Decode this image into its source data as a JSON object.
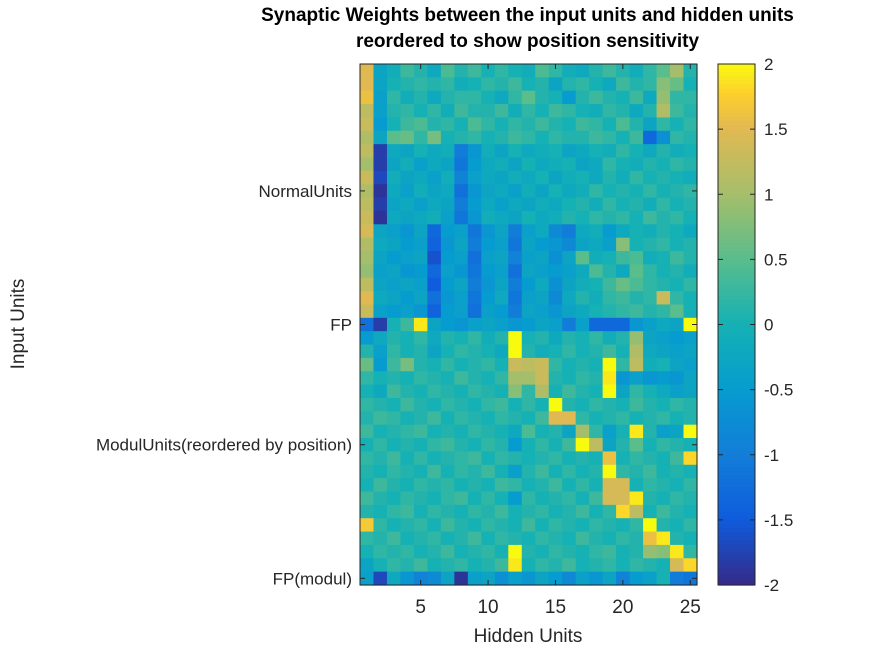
{
  "chart_data": {
    "type": "heatmap",
    "title": [
      "Synaptic Weights between the input units and hidden units",
      "reordered to show position sensitivity"
    ],
    "xlabel": "Hidden Units",
    "ylabel": "Input Units",
    "x_ticks": [
      5,
      10,
      15,
      20,
      25
    ],
    "y_ticks": [
      {
        "row": 9,
        "label": "NormalUnits"
      },
      {
        "row": 19,
        "label": "FP"
      },
      {
        "row": 28,
        "label": "ModulUnits(reordered by position)"
      },
      {
        "row": 38,
        "label": "FP(modul)"
      }
    ],
    "n_columns": 25,
    "n_rows": 39,
    "clim": [
      -2,
      2
    ],
    "colorbar_ticks": [
      "2",
      "1.5",
      "1",
      "0.5",
      "0",
      "-0.5",
      "-1",
      "-1.5",
      "-2"
    ],
    "colormap": "parula",
    "values": [
      [
        1.5,
        -0.3,
        -0.1,
        0.3,
        0.1,
        -0.2,
        0.4,
        0.1,
        0.3,
        0,
        0.2,
        0,
        -0.1,
        0.4,
        0.2,
        -0.1,
        -0.2,
        0.1,
        0.3,
        0.1,
        -0.1,
        0.2,
        0.5,
        1.0,
        0.1
      ],
      [
        1.5,
        -0.3,
        0.0,
        0.1,
        0.2,
        0.1,
        0.2,
        -0.1,
        0.0,
        0.2,
        0.1,
        0.3,
        0.0,
        0.1,
        -0.3,
        0.1,
        0.2,
        0.0,
        -0.2,
        0.3,
        0.1,
        0.2,
        0.8,
        0.6,
        0.0
      ],
      [
        1.6,
        -0.4,
        0.2,
        -0.1,
        0.1,
        -0.2,
        0.1,
        0.2,
        0.2,
        0.0,
        -0.2,
        0.2,
        0.5,
        0.1,
        0.0,
        -0.5,
        0.1,
        0.3,
        0.1,
        0.0,
        0.3,
        -0.2,
        0.9,
        0.2,
        0.2
      ],
      [
        1.2,
        -0.4,
        0.1,
        0.2,
        0.0,
        0.2,
        -0.1,
        0.3,
        0.1,
        0.1,
        0.3,
        -0.1,
        0.2,
        0.0,
        0.3,
        0.2,
        0.0,
        -0.1,
        0.2,
        0.1,
        -0.2,
        0.1,
        1.1,
        0.3,
        0.1
      ],
      [
        1.3,
        -0.5,
        0.0,
        0.3,
        0.4,
        0.1,
        0.2,
        0.0,
        0.4,
        0.2,
        0.0,
        0.2,
        0.1,
        0.3,
        0.1,
        0.0,
        0.3,
        0.2,
        0.0,
        0.4,
        0.1,
        -0.3,
        0.2,
        0.0,
        0.2
      ],
      [
        1.1,
        -0.3,
        0.5,
        0.6,
        0.2,
        0.7,
        0.0,
        0.1,
        0.2,
        0.0,
        0.1,
        0.3,
        0.2,
        0.0,
        0.2,
        0.1,
        0.1,
        0.3,
        0.2,
        0.0,
        0.3,
        -1.3,
        -0.7,
        0.2,
        0.1
      ],
      [
        1.2,
        -1.8,
        -0.2,
        -0.3,
        0.0,
        -0.2,
        -0.1,
        -1.0,
        -0.6,
        -0.1,
        -0.3,
        0.0,
        -0.2,
        -0.1,
        0.0,
        -0.3,
        -0.2,
        0.0,
        -0.1,
        0.2,
        0.0,
        -0.2,
        0.1,
        -0.1,
        0.0
      ],
      [
        1.0,
        -1.8,
        -0.3,
        -0.1,
        -0.4,
        -0.2,
        -0.3,
        -1.1,
        -0.5,
        -0.2,
        -0.1,
        -0.3,
        0.0,
        -0.2,
        -0.1,
        0.0,
        -0.3,
        -0.2,
        0.2,
        0.0,
        -0.1,
        0.1,
        0.0,
        0.2,
        0.1
      ],
      [
        1.3,
        -1.7,
        -0.1,
        -0.3,
        -0.2,
        -0.4,
        -0.1,
        -0.9,
        -0.4,
        -0.2,
        -0.3,
        -0.1,
        -0.2,
        0.0,
        -0.3,
        -0.1,
        0.0,
        -0.2,
        0.1,
        -0.1,
        0.2,
        0.0,
        0.1,
        0.0,
        -0.1
      ],
      [
        1.1,
        -1.9,
        -0.2,
        -0.4,
        -0.1,
        -0.3,
        -0.2,
        -1.2,
        -0.6,
        -0.3,
        -0.2,
        -0.4,
        -0.1,
        -0.3,
        0.0,
        -0.2,
        -0.1,
        0.2,
        0.0,
        0.1,
        0.0,
        0.2,
        0.0,
        0.1,
        0.2
      ],
      [
        1.2,
        -1.8,
        -0.3,
        -0.2,
        -0.4,
        -0.2,
        -0.3,
        -1.0,
        -0.5,
        -0.2,
        -0.4,
        -0.2,
        -0.3,
        -0.1,
        -0.2,
        0.0,
        0.1,
        -0.1,
        0.2,
        0.0,
        0.1,
        -0.1,
        0.2,
        0.0,
        0.1
      ],
      [
        1.3,
        -1.9,
        -0.2,
        -0.3,
        -0.2,
        -0.1,
        -0.4,
        -1.1,
        -0.6,
        -0.1,
        -0.2,
        -0.3,
        0.0,
        -0.2,
        -0.1,
        0.1,
        0.0,
        0.2,
        0.1,
        0.2,
        0.0,
        0.3,
        0.1,
        0.2,
        0.0
      ],
      [
        1.4,
        -0.3,
        -0.4,
        -0.6,
        -0.3,
        -1.3,
        -0.5,
        -0.4,
        -1.1,
        -0.6,
        -0.3,
        -1.0,
        -0.4,
        -0.2,
        -0.8,
        -1.0,
        -0.2,
        -0.1,
        -0.5,
        -0.2,
        0.0,
        -0.1,
        0.1,
        0.0,
        -0.2
      ],
      [
        1.1,
        -0.2,
        -0.3,
        -0.5,
        -0.4,
        -1.4,
        -0.6,
        -0.3,
        -1.0,
        -0.5,
        -0.4,
        -1.1,
        -0.3,
        -0.5,
        -0.6,
        -0.8,
        -0.3,
        -0.2,
        -0.4,
        0.8,
        0.0,
        0.1,
        0.2,
        0.0,
        0.1
      ],
      [
        1.0,
        -0.3,
        -0.5,
        -0.4,
        -0.3,
        -1.6,
        -0.5,
        -0.4,
        -1.2,
        -0.4,
        -0.3,
        -0.9,
        -0.4,
        -0.3,
        -0.7,
        -0.3,
        0.5,
        -0.1,
        0.0,
        0.3,
        0.4,
        -0.1,
        0.0,
        0.3,
        0.1
      ],
      [
        0.9,
        -0.4,
        -0.3,
        -0.6,
        -0.5,
        -1.3,
        -0.4,
        -0.6,
        -1.1,
        -0.5,
        -0.4,
        -1.2,
        -0.3,
        -0.4,
        -0.5,
        -0.4,
        -0.2,
        0.4,
        0.1,
        -0.2,
        0.5,
        0.2,
        0.0,
        0.1,
        -0.1
      ],
      [
        1.2,
        -0.3,
        -0.4,
        -0.3,
        -0.4,
        -1.5,
        -0.5,
        -0.3,
        -1.0,
        -0.6,
        -0.3,
        -1.0,
        -0.5,
        -0.2,
        -0.7,
        -0.3,
        -0.1,
        0.0,
        0.3,
        0.6,
        0.4,
        0.2,
        0.1,
        0.0,
        0.2
      ],
      [
        1.5,
        -0.2,
        -0.3,
        -0.5,
        -0.3,
        -1.2,
        -0.6,
        -0.4,
        -1.1,
        -0.5,
        -0.2,
        -1.1,
        -0.4,
        -0.3,
        -0.8,
        -0.2,
        0.1,
        -0.1,
        0.2,
        0.3,
        0.1,
        0.2,
        1.3,
        0.2,
        0.0
      ],
      [
        1.3,
        -0.4,
        -0.5,
        -0.4,
        -0.6,
        -1.4,
        -0.5,
        -0.4,
        -1.2,
        -0.4,
        -0.5,
        -1.0,
        -0.3,
        -0.4,
        -0.6,
        -0.3,
        -0.2,
        0.0,
        0.1,
        0.2,
        0.3,
        0.1,
        0.2,
        0.5,
        0.0
      ],
      [
        -1.2,
        -1.8,
        0.0,
        0.3,
        1.9,
        -0.3,
        -0.5,
        -0.6,
        -0.4,
        -0.3,
        -0.4,
        -0.6,
        -0.5,
        -0.3,
        -0.4,
        -1.0,
        -0.4,
        -1.3,
        -1.3,
        -1.3,
        -0.6,
        -0.4,
        -0.2,
        -0.3,
        2.0
      ],
      [
        -0.5,
        -0.2,
        0.1,
        0.0,
        0.2,
        -0.2,
        0.1,
        0.0,
        0.2,
        -0.1,
        0.1,
        2.0,
        0.0,
        0.1,
        -0.2,
        0.1,
        0.0,
        0.2,
        -0.1,
        0.1,
        0.9,
        -0.3,
        -0.4,
        -0.5,
        -0.4
      ],
      [
        0.1,
        -0.4,
        0.2,
        0.0,
        0.1,
        -0.3,
        0.0,
        0.2,
        0.1,
        0.0,
        -0.2,
        2.0,
        0.1,
        -0.1,
        0.0,
        0.2,
        0.0,
        0.1,
        0.3,
        0.0,
        1.1,
        -0.2,
        -0.3,
        -0.4,
        -0.3
      ],
      [
        0.6,
        -0.5,
        0.3,
        0.7,
        0.1,
        0.0,
        0.2,
        0.0,
        0.1,
        0.2,
        0.0,
        1.3,
        1.2,
        1.3,
        0.2,
        0.0,
        0.1,
        0.0,
        2.0,
        0.2,
        1.2,
        -0.1,
        0.0,
        -0.3,
        -0.4
      ],
      [
        0.2,
        0.0,
        0.1,
        0.0,
        0.2,
        0.1,
        0.0,
        0.3,
        0.1,
        0.0,
        0.2,
        1.0,
        1.0,
        1.3,
        0.1,
        0.0,
        0.2,
        0.1,
        1.9,
        -0.6,
        -0.4,
        -0.6,
        -0.5,
        -0.6,
        -0.3
      ],
      [
        0.0,
        -0.2,
        0.3,
        0.1,
        0.0,
        0.2,
        0.1,
        0.0,
        0.2,
        0.1,
        0.0,
        0.8,
        0.2,
        1.1,
        0.0,
        0.3,
        0.1,
        0.0,
        2.0,
        -0.3,
        0.2,
        0.0,
        -0.2,
        -0.4,
        -0.3
      ],
      [
        0.2,
        0.1,
        0.0,
        0.3,
        0.1,
        0.0,
        0.2,
        0.1,
        0.0,
        0.2,
        0.3,
        0.0,
        0.2,
        0.0,
        2.0,
        0.1,
        0.0,
        0.2,
        0.1,
        0.0,
        0.3,
        0.1,
        0.0,
        0.2,
        0.1
      ],
      [
        0.1,
        0.3,
        0.2,
        0.0,
        0.1,
        0.3,
        0.0,
        0.2,
        0.1,
        0.0,
        0.2,
        0.1,
        0.0,
        0.3,
        1.5,
        1.5,
        0.2,
        0.0,
        0.1,
        0.2,
        0.0,
        0.1,
        0.2,
        0.0,
        0.1
      ],
      [
        0.3,
        0.0,
        0.1,
        0.2,
        0.3,
        0.0,
        0.1,
        0.0,
        0.2,
        0.1,
        0.0,
        -0.2,
        0.4,
        0.0,
        0.1,
        -0.3,
        1.0,
        0.2,
        -0.4,
        0.0,
        1.9,
        0.1,
        -0.4,
        -0.3,
        2.0
      ],
      [
        0.0,
        0.2,
        0.0,
        0.1,
        0.0,
        0.2,
        0.3,
        0.1,
        0.0,
        0.2,
        0.1,
        -0.5,
        0.0,
        0.2,
        0.0,
        0.3,
        2.0,
        1.2,
        -0.3,
        0.1,
        0.5,
        0.0,
        0.2,
        0.1,
        0.0
      ],
      [
        0.2,
        0.1,
        0.3,
        0.0,
        0.2,
        0.0,
        0.1,
        0.2,
        0.3,
        0.0,
        0.2,
        0.1,
        0.0,
        0.1,
        0.2,
        0.0,
        0.1,
        0.0,
        1.6,
        0.0,
        0.2,
        0.1,
        0.0,
        0.3,
        1.8
      ],
      [
        0.1,
        0.0,
        0.2,
        0.1,
        0.0,
        0.3,
        0.0,
        0.2,
        0.1,
        0.3,
        0.0,
        -0.4,
        0.1,
        0.3,
        0.0,
        0.2,
        0.0,
        0.1,
        2.0,
        0.2,
        0.1,
        0.3,
        0.0,
        0.1,
        0.0
      ],
      [
        0.0,
        0.3,
        0.1,
        0.0,
        0.2,
        0.1,
        0.2,
        0.0,
        0.1,
        0.0,
        0.3,
        0.2,
        0.0,
        0.1,
        0.3,
        0.0,
        0.2,
        0.0,
        1.4,
        1.4,
        0.0,
        0.2,
        0.1,
        0.0,
        0.2
      ],
      [
        0.3,
        0.1,
        0.0,
        0.2,
        0.1,
        0.0,
        0.2,
        0.3,
        0.0,
        0.2,
        0.0,
        -0.5,
        0.2,
        0.0,
        0.1,
        0.2,
        0.0,
        0.3,
        1.4,
        1.4,
        1.9,
        0.1,
        0.0,
        0.2,
        0.1
      ],
      [
        0.1,
        0.0,
        0.2,
        0.3,
        0.0,
        0.2,
        0.1,
        0.0,
        0.2,
        0.1,
        0.3,
        0.0,
        0.1,
        0.2,
        0.0,
        0.1,
        0.3,
        0.0,
        0.2,
        1.8,
        1.2,
        0.0,
        0.3,
        0.1,
        0.0
      ],
      [
        1.7,
        0.2,
        0.0,
        0.1,
        0.2,
        0.0,
        0.3,
        0.1,
        0.0,
        0.2,
        0.1,
        0.0,
        0.3,
        0.0,
        0.2,
        0.1,
        0.0,
        0.2,
        0.1,
        0.0,
        0.2,
        2.0,
        0.1,
        0.0,
        0.2
      ],
      [
        0.2,
        0.1,
        0.3,
        0.0,
        0.1,
        0.2,
        0.0,
        0.1,
        0.3,
        0.0,
        0.2,
        0.1,
        0.0,
        0.2,
        0.1,
        0.0,
        0.3,
        0.1,
        0.0,
        0.2,
        0.1,
        1.6,
        1.9,
        0.1,
        0.0
      ],
      [
        0.0,
        0.2,
        0.1,
        0.2,
        0.0,
        0.1,
        0.3,
        0.0,
        0.1,
        0.2,
        0.0,
        2.0,
        0.1,
        0.0,
        0.2,
        0.1,
        0.0,
        0.2,
        0.3,
        0.0,
        0.1,
        0.9,
        0.8,
        1.9,
        0.2
      ],
      [
        -0.3,
        0.0,
        0.2,
        0.1,
        0.3,
        0.0,
        0.1,
        0.2,
        0.0,
        0.1,
        0.3,
        1.9,
        0.0,
        0.2,
        0.1,
        0.3,
        0.0,
        0.1,
        0.2,
        0.0,
        0.2,
        0.1,
        0.0,
        1.4,
        1.8
      ],
      [
        -0.4,
        -1.7,
        -0.2,
        -0.6,
        -0.9,
        -0.8,
        -0.3,
        -1.9,
        -0.4,
        -0.3,
        -0.7,
        -0.4,
        -0.6,
        -0.3,
        -0.5,
        -0.8,
        -0.4,
        -0.6,
        -0.3,
        -0.9,
        -0.5,
        -0.4,
        0.0,
        -1.0,
        -1.1
      ]
    ]
  }
}
